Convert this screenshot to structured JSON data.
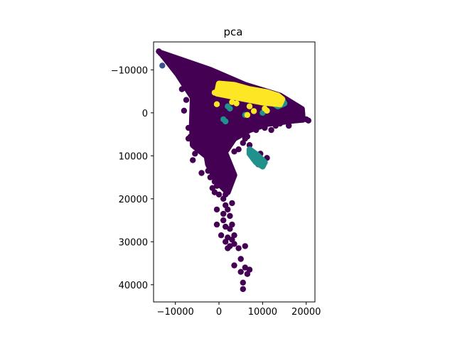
{
  "chart_data": {
    "type": "scatter",
    "title": "pca",
    "xlabel": "",
    "ylabel": "",
    "xlim": [
      -15000,
      22000
    ],
    "ylim": [
      -16500,
      44000
    ],
    "y_inverted": true,
    "grid": false,
    "xticks": [
      -10000,
      0,
      10000,
      20000
    ],
    "xtick_labels": [
      "−10000",
      "0",
      "10000",
      "20000"
    ],
    "yticks": [
      -10000,
      0,
      10000,
      20000,
      30000,
      40000
    ],
    "ytick_labels": [
      "−10000",
      "0",
      "10000",
      "20000",
      "30000",
      "40000"
    ],
    "colors": {
      "class_0": "#440154",
      "class_1": "#3b528b",
      "class_2": "#21918c",
      "class_3": "#fde725"
    },
    "series": [
      {
        "color_key": "class_0",
        "regions": [
          {
            "shape": "polygon",
            "points": [
              [
                -13500,
                -14000
              ],
              [
                -2000,
                -10000
              ],
              [
                6000,
                -6500
              ],
              [
                14000,
                -4000
              ],
              [
                19000,
                -900
              ],
              [
                19200,
                1600
              ],
              [
                17000,
                1800
              ],
              [
                11000,
                2600
              ],
              [
                7000,
                4000
              ],
              [
                3500,
                6000
              ],
              [
                1500,
                9000
              ],
              [
                0,
                12500
              ],
              [
                -3000,
                10000
              ],
              [
                -6000,
                7500
              ],
              [
                -6200,
                2500
              ],
              [
                -6000,
                -3500
              ],
              [
                -9500,
                -9000
              ],
              [
                -13000,
                -13500
              ]
            ]
          },
          {
            "shape": "polygon",
            "points": [
              [
                1000,
                -4500
              ],
              [
                13000,
                -3000
              ],
              [
                18500,
                -300
              ],
              [
                19000,
                1300
              ],
              [
                13000,
                1200
              ],
              [
                5000,
                300
              ],
              [
                1000,
                -2500
              ]
            ]
          },
          {
            "shape": "polygon",
            "points": [
              [
                -3000,
                9000
              ],
              [
                1500,
                9500
              ],
              [
                3500,
                14500
              ],
              [
                2000,
                18500
              ],
              [
                -500,
                16000
              ],
              [
                -2500,
                12000
              ]
            ]
          }
        ],
        "points": [
          [
            -13800,
            -14300
          ],
          [
            -12800,
            -13200
          ],
          [
            -11500,
            -12800
          ],
          [
            -6000,
            -7500
          ],
          [
            -4200,
            -6900
          ],
          [
            -4000,
            -5500
          ],
          [
            0,
            -8000
          ],
          [
            -2500,
            -9500
          ],
          [
            -8500,
            -5500
          ],
          [
            -7500,
            -3000
          ],
          [
            -8000,
            -500
          ],
          [
            -7000,
            3500
          ],
          [
            -4500,
            3000
          ],
          [
            -7000,
            6000
          ],
          [
            -5000,
            4500
          ],
          [
            -4000,
            6500
          ],
          [
            -6000,
            7000
          ],
          [
            -6500,
            5500
          ],
          [
            -3000,
            8000
          ],
          [
            -2000,
            10500
          ],
          [
            -5500,
            9500
          ],
          [
            -6000,
            11000
          ],
          [
            -2500,
            13500
          ],
          [
            -4000,
            14000
          ],
          [
            -2000,
            15000
          ],
          [
            -1000,
            16000
          ],
          [
            -1500,
            17500
          ],
          [
            -1000,
            18500
          ],
          [
            -500,
            17000
          ],
          [
            0,
            19000
          ],
          [
            3000,
            14500
          ],
          [
            2000,
            17000
          ],
          [
            1500,
            19000
          ],
          [
            1000,
            20000
          ],
          [
            1500,
            21500
          ],
          [
            2000,
            22500
          ],
          [
            -500,
            22500
          ],
          [
            1000,
            23500
          ],
          [
            3000,
            21000
          ],
          [
            2500,
            24000
          ],
          [
            1000,
            25000
          ],
          [
            -500,
            26000
          ],
          [
            1500,
            26500
          ],
          [
            2500,
            27000
          ],
          [
            3000,
            26000
          ],
          [
            3500,
            28500
          ],
          [
            2000,
            29000
          ],
          [
            500,
            28500
          ],
          [
            1500,
            30000
          ],
          [
            3000,
            29500
          ],
          [
            2500,
            31000
          ],
          [
            2000,
            31500
          ],
          [
            3500,
            30500
          ],
          [
            4500,
            31500
          ],
          [
            6000,
            31000
          ],
          [
            3500,
            35500
          ],
          [
            5000,
            34000
          ],
          [
            6000,
            36000
          ],
          [
            7000,
            36500
          ],
          [
            5000,
            37000
          ],
          [
            6500,
            37500
          ],
          [
            5500,
            39500
          ],
          [
            5500,
            41000
          ],
          [
            15000,
            -1500
          ],
          [
            16000,
            -800
          ],
          [
            17000,
            0
          ],
          [
            18500,
            300
          ],
          [
            19000,
            1500
          ],
          [
            20000,
            1500
          ],
          [
            20500,
            1800
          ],
          [
            16000,
            2000
          ],
          [
            14000,
            2500
          ],
          [
            13000,
            3000
          ],
          [
            16000,
            3000
          ],
          [
            12000,
            4000
          ],
          [
            10500,
            3500
          ],
          [
            8500,
            4000
          ],
          [
            5500,
            5000
          ],
          [
            6000,
            6000
          ],
          [
            6500,
            5500
          ],
          [
            7000,
            7500
          ],
          [
            5500,
            7000
          ],
          [
            4500,
            8500
          ],
          [
            3500,
            9000
          ],
          [
            9500,
            9500
          ],
          [
            11000,
            10500
          ],
          [
            2000,
            -8000
          ],
          [
            4000,
            -6500
          ],
          [
            7000,
            -4500
          ],
          [
            9000,
            -4000
          ],
          [
            10000,
            -3500
          ]
        ]
      },
      {
        "color_key": "class_1",
        "regions": [],
        "points": [
          [
            -13000,
            -11000
          ],
          [
            9000,
            12000
          ],
          [
            10500,
            11500
          ]
        ]
      },
      {
        "color_key": "class_2",
        "regions": [
          {
            "shape": "polygon",
            "points": [
              [
                7000,
                8500
              ],
              [
                9000,
                10000
              ],
              [
                10500,
                11500
              ],
              [
                10000,
                12500
              ],
              [
                8500,
                11500
              ],
              [
                7000,
                9500
              ]
            ]
          },
          {
            "shape": "polygon",
            "points": [
              [
                12000,
                -4000
              ],
              [
                14500,
                -3000
              ],
              [
                15000,
                -2200
              ],
              [
                13500,
                -1500
              ],
              [
                12000,
                -2500
              ]
            ]
          }
        ],
        "points": [
          [
            1000,
            1500
          ],
          [
            1500,
            2000
          ],
          [
            6000,
            500
          ],
          [
            10500,
            -700
          ],
          [
            10000,
            0
          ],
          [
            2000,
            -1500
          ],
          [
            2500,
            -1000
          ],
          [
            8000,
            9500
          ],
          [
            9500,
            11000
          ],
          [
            10000,
            12000
          ],
          [
            14500,
            -2500
          ]
        ]
      },
      {
        "color_key": "class_3",
        "regions": [
          {
            "shape": "polygon",
            "points": [
              [
                0,
                -6800
              ],
              [
                3500,
                -6500
              ],
              [
                7000,
                -5500
              ],
              [
                11000,
                -4800
              ],
              [
                13500,
                -4000
              ],
              [
                14500,
                -3200
              ],
              [
                14000,
                -2000
              ],
              [
                10000,
                -2400
              ],
              [
                6000,
                -3200
              ],
              [
                2000,
                -4000
              ],
              [
                -500,
                -4500
              ]
            ]
          }
        ],
        "points": [
          [
            1000,
            -5000
          ],
          [
            2500,
            -4500
          ],
          [
            -1000,
            -4700
          ],
          [
            -500,
            -2000
          ],
          [
            5500,
            -4000
          ],
          [
            9000,
            -3500
          ],
          [
            12000,
            -2500
          ],
          [
            13500,
            -3000
          ],
          [
            10500,
            -1000
          ],
          [
            7000,
            -1500
          ],
          [
            4000,
            -2200
          ],
          [
            8000,
            -400
          ],
          [
            11000,
            -500
          ],
          [
            6500,
            500
          ],
          [
            3000,
            -2500
          ]
        ]
      }
    ]
  }
}
